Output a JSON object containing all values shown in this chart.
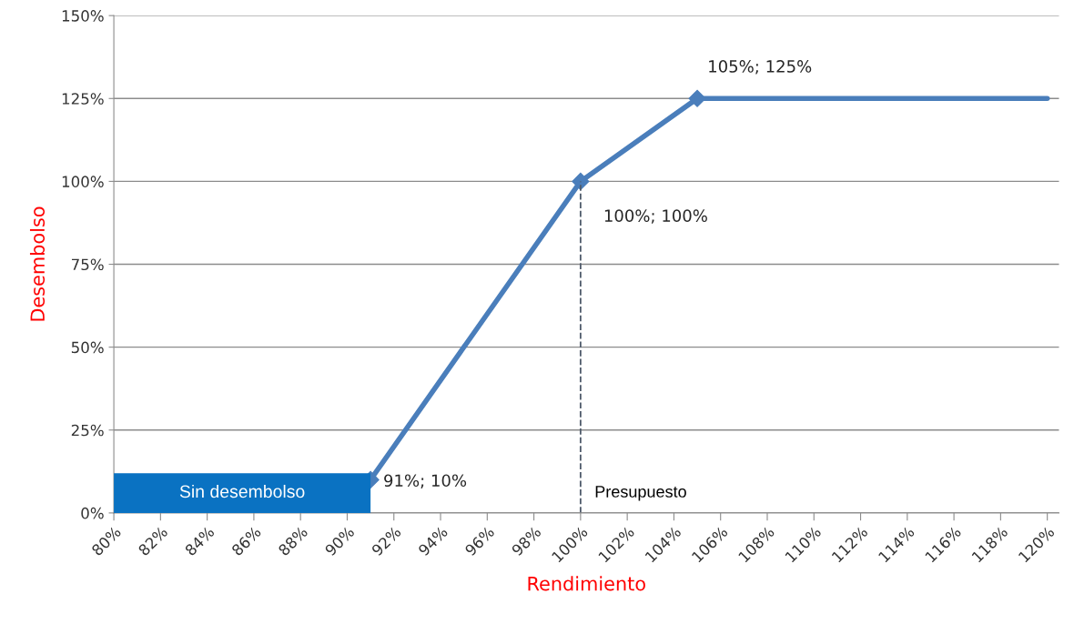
{
  "chart_data": {
    "type": "line",
    "xlabel": "Rendimiento",
    "ylabel": "Desembolso",
    "xlim": [
      80,
      120.5
    ],
    "ylim": [
      0,
      150
    ],
    "xticks": [
      {
        "value": 80,
        "label": "80%"
      },
      {
        "value": 82,
        "label": "82%"
      },
      {
        "value": 84,
        "label": "84%"
      },
      {
        "value": 86,
        "label": "86%"
      },
      {
        "value": 88,
        "label": "88%"
      },
      {
        "value": 90,
        "label": "90%"
      },
      {
        "value": 92,
        "label": "92%"
      },
      {
        "value": 94,
        "label": "94%"
      },
      {
        "value": 96,
        "label": "96%"
      },
      {
        "value": 98,
        "label": "98%"
      },
      {
        "value": 100,
        "label": "100%"
      },
      {
        "value": 102,
        "label": "102%"
      },
      {
        "value": 104,
        "label": "104%"
      },
      {
        "value": 106,
        "label": "106%"
      },
      {
        "value": 108,
        "label": "108%"
      },
      {
        "value": 110,
        "label": "110%"
      },
      {
        "value": 112,
        "label": "112%"
      },
      {
        "value": 114,
        "label": "114%"
      },
      {
        "value": 116,
        "label": "116%"
      },
      {
        "value": 118,
        "label": "118%"
      },
      {
        "value": 120,
        "label": "120%"
      }
    ],
    "yticks": [
      {
        "value": 0,
        "label": "0%"
      },
      {
        "value": 25,
        "label": "25%"
      },
      {
        "value": 50,
        "label": "50%"
      },
      {
        "value": 75,
        "label": "75%"
      },
      {
        "value": 100,
        "label": "100%"
      },
      {
        "value": 125,
        "label": "125%"
      },
      {
        "value": 150,
        "label": "150%"
      }
    ],
    "grid": "y",
    "legend": false,
    "line_style": "solid",
    "series": [
      {
        "color": "#4a7ebb",
        "x": [
          91,
          100,
          105
        ],
        "values": [
          10,
          100,
          125
        ],
        "marker": "diamond",
        "value_labels": [
          "91%; 10%",
          "100%; 100%",
          "105%; 125%"
        ]
      },
      {
        "color": "#4a7ebb",
        "x": [
          105,
          120
        ],
        "values": [
          125,
          125
        ],
        "marker": "none"
      }
    ],
    "ref_lines": [
      {
        "axis": "x",
        "value": 100,
        "label": "Presupuesto",
        "color": "#4f5b6b",
        "line_style": "dashed"
      }
    ],
    "bands": [
      {
        "axis": "x",
        "from": 80,
        "to": 91,
        "label": "Sin desembolso",
        "color": "#0a72c2"
      }
    ]
  }
}
